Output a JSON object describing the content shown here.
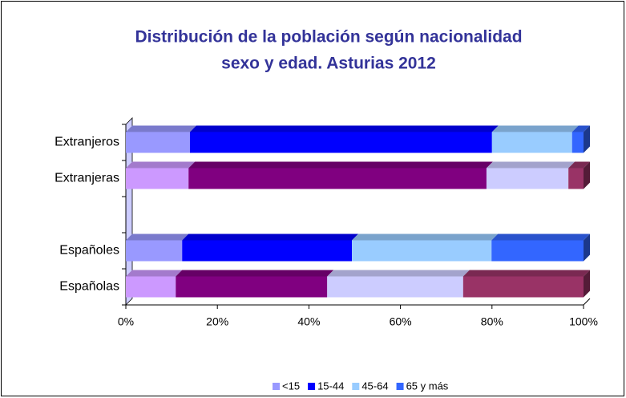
{
  "chart_data": {
    "type": "bar",
    "orientation": "horizontal",
    "stacked": true,
    "title": [
      "Distribución de la población según nacionalidad",
      "sexo y edad. Asturias 2012"
    ],
    "categories": [
      "Extranjeros",
      "Extranjeras",
      null,
      "Españoles",
      "Españolas"
    ],
    "series": [
      {
        "name": "<15",
        "color": "#9999ff",
        "colors": [
          "#9999ff",
          "#cc99ff",
          null,
          "#9999ff",
          "#cc99ff"
        ],
        "values": [
          14,
          13.7,
          null,
          12.3,
          10.9
        ]
      },
      {
        "name": "15-44",
        "color": "#0000ff",
        "colors": [
          "#0000ff",
          "#800080",
          null,
          "#0000ff",
          "#800080"
        ],
        "values": [
          66,
          65.1,
          null,
          37.1,
          33.1
        ]
      },
      {
        "name": "45-64",
        "color": "#99ccff",
        "colors": [
          "#99ccff",
          "#ccccff",
          null,
          "#99ccff",
          "#ccccff"
        ],
        "values": [
          17.5,
          17.9,
          null,
          30.5,
          29.7
        ]
      },
      {
        "name": "65 y más",
        "color": "#3366ff",
        "colors": [
          "#3366ff",
          "#993366",
          null,
          "#3366ff",
          "#993366"
        ],
        "values": [
          2.5,
          3.3,
          null,
          20.1,
          26.3
        ]
      }
    ],
    "xlim": [
      0,
      100
    ],
    "xticks": [
      {
        "value": 0,
        "label": "0%"
      },
      {
        "value": 20,
        "label": "20%"
      },
      {
        "value": 40,
        "label": "40%"
      },
      {
        "value": 60,
        "label": "60%"
      },
      {
        "value": 80,
        "label": "80%"
      },
      {
        "value": 100,
        "label": "100%"
      }
    ],
    "legend": "bottom"
  }
}
